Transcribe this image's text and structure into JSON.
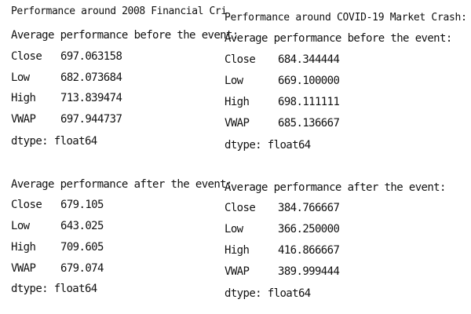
{
  "left_panel": {
    "title": "Performance around 2008 Financial Cri",
    "before": {
      "heading": "Average performance before the event:",
      "rows": [
        {
          "label": "Close",
          "value": "697.063158"
        },
        {
          "label": "Low",
          "value": "682.073684"
        },
        {
          "label": "High",
          "value": "713.839474"
        },
        {
          "label": "VWAP",
          "value": "697.944737"
        }
      ],
      "dtype": "dtype: float64"
    },
    "after": {
      "heading": "Average performance after the event:",
      "rows": [
        {
          "label": "Close",
          "value": "679.105"
        },
        {
          "label": "Low",
          "value": "643.025"
        },
        {
          "label": "High",
          "value": "709.605"
        },
        {
          "label": "VWAP",
          "value": "679.074"
        }
      ],
      "dtype": "dtype: float64"
    }
  },
  "right_panel": {
    "title": "Performance around COVID-19 Market Crash:",
    "before": {
      "heading": "Average performance before the event:",
      "rows": [
        {
          "label": "Close",
          "value": "684.344444"
        },
        {
          "label": "Low",
          "value": "669.100000"
        },
        {
          "label": "High",
          "value": "698.111111"
        },
        {
          "label": "VWAP",
          "value": "685.136667"
        }
      ],
      "dtype": "dtype: float64"
    },
    "after": {
      "heading": "Average performance after the event:",
      "rows": [
        {
          "label": "Close",
          "value": "384.766667"
        },
        {
          "label": "Low",
          "value": "366.250000"
        },
        {
          "label": "High",
          "value": "416.866667"
        },
        {
          "label": "VWAP",
          "value": "389.999444"
        }
      ],
      "dtype": "dtype: float64"
    }
  }
}
